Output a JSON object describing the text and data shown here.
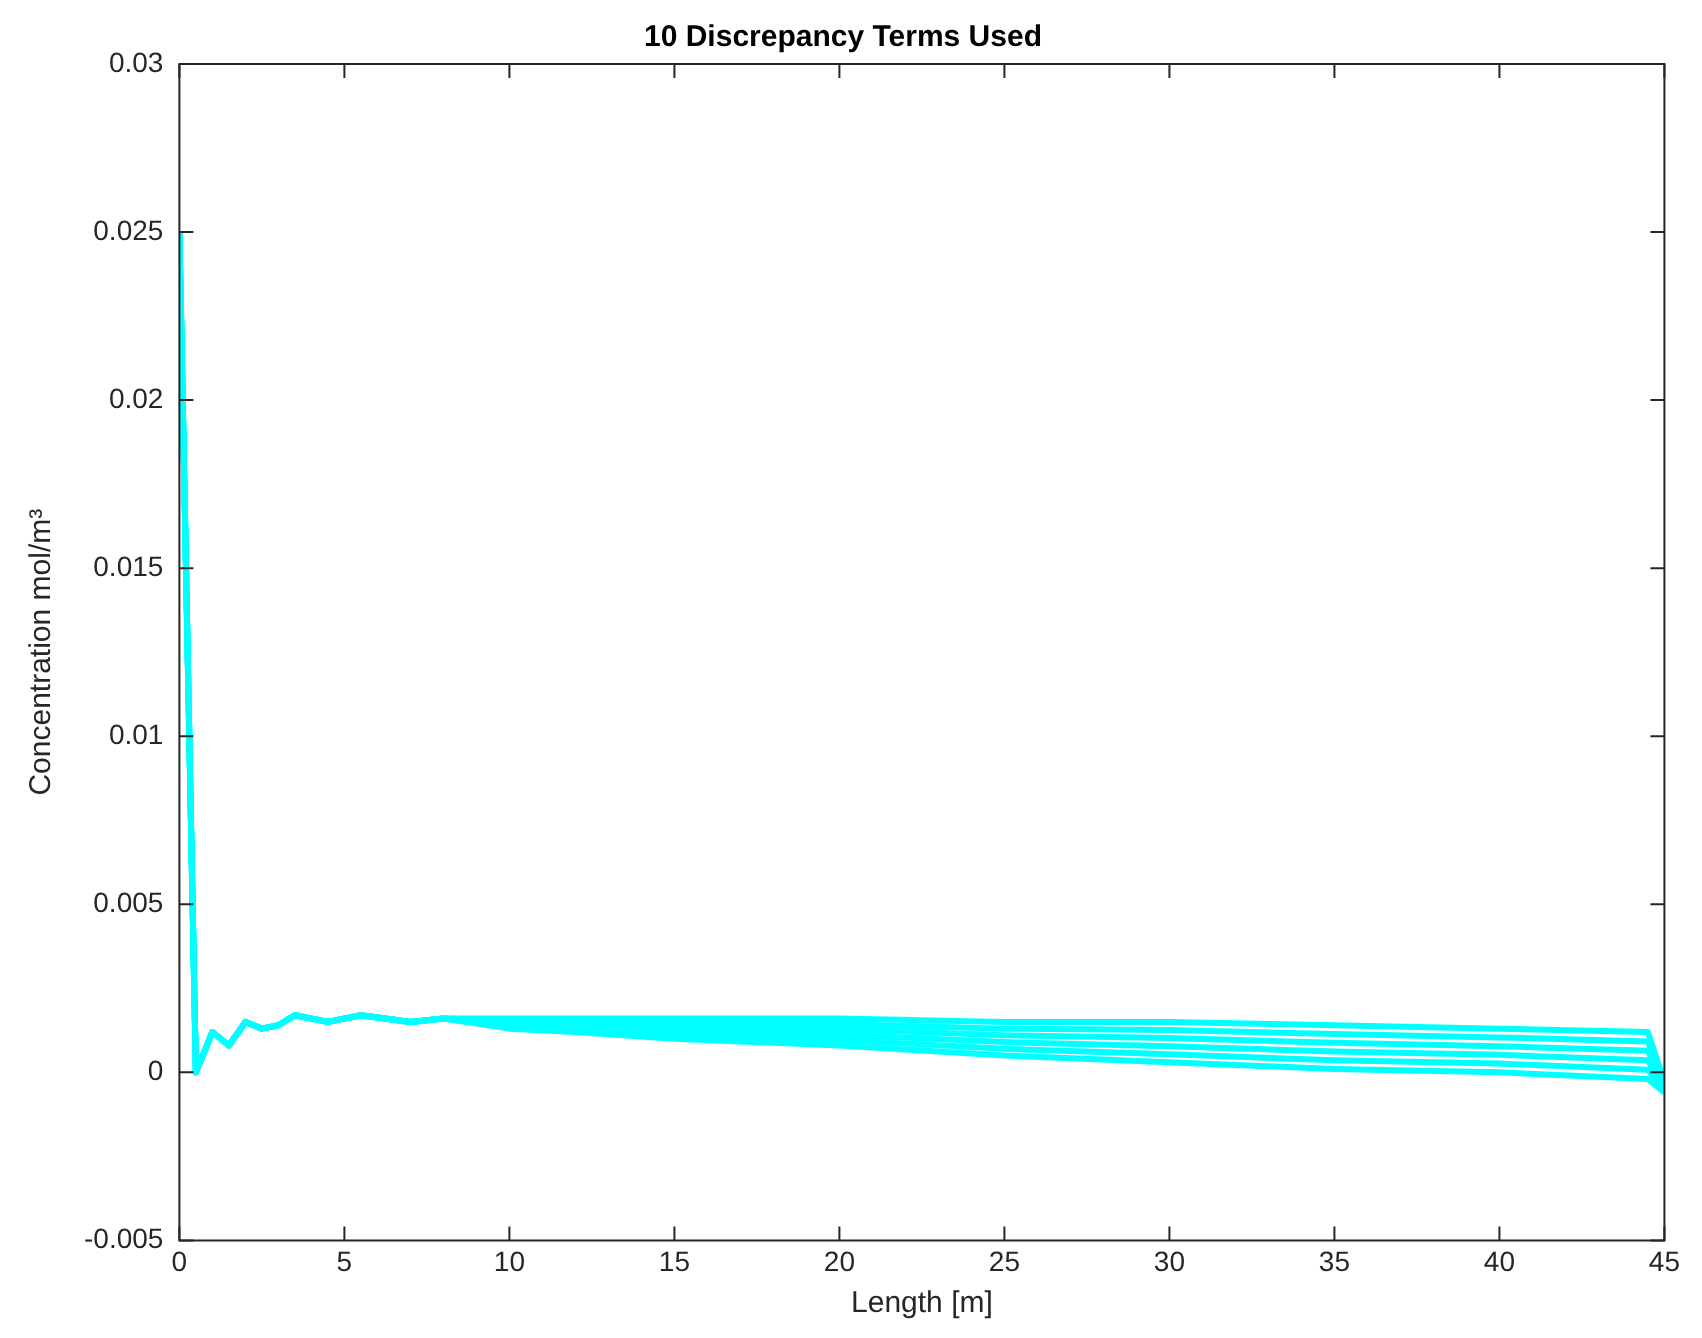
{
  "chart_data": {
    "type": "line",
    "title": "10 Discrepancy Terms Used",
    "xlabel": "Length [m]",
    "ylabel": "Concentration mol/m³",
    "x": [
      0,
      0.5,
      1,
      1.5,
      2,
      2.5,
      3,
      3.5,
      4.5,
      5.5,
      7,
      8,
      10,
      12,
      15,
      20,
      25,
      30,
      35,
      40,
      44.5,
      45
    ],
    "series": [
      {
        "color": "#00ffff",
        "values": [
          0.025,
          0,
          0.0012,
          0.0008,
          0.0015,
          0.0013,
          0.0014,
          0.0017,
          0.0015,
          0.0017,
          0.0015,
          0.0016,
          0.0016,
          0.0016,
          0.0016,
          0.0016,
          0.0015,
          0.0015,
          0.0014,
          0.0013,
          0.0012,
          -0.0003
        ]
      },
      {
        "color": "#00ffff",
        "values": [
          0.025,
          0,
          0.0012,
          0.0008,
          0.0015,
          0.0013,
          0.0014,
          0.0017,
          0.0015,
          0.0017,
          0.0015,
          0.0016,
          0.00154,
          0.00152,
          0.00148,
          0.00144,
          0.0013,
          0.00126,
          0.00114,
          0.00104,
          0.00092,
          -0.00036
        ]
      },
      {
        "color": "#00ffff",
        "values": [
          0.025,
          0,
          0.0012,
          0.0008,
          0.0015,
          0.0013,
          0.0014,
          0.0017,
          0.0015,
          0.0017,
          0.0015,
          0.0016,
          0.00148,
          0.00144,
          0.00136,
          0.00128,
          0.0011,
          0.00102,
          0.00088,
          0.00078,
          0.00064,
          -0.00042
        ]
      },
      {
        "color": "#00ffff",
        "values": [
          0.025,
          0,
          0.0012,
          0.0008,
          0.0015,
          0.0013,
          0.0014,
          0.0017,
          0.0015,
          0.0017,
          0.0015,
          0.0016,
          0.00142,
          0.00136,
          0.00124,
          0.00112,
          0.0009,
          0.00078,
          0.00062,
          0.00052,
          0.00036,
          -0.00048
        ]
      },
      {
        "color": "#00ffff",
        "values": [
          0.025,
          0,
          0.0012,
          0.0008,
          0.0015,
          0.0013,
          0.0014,
          0.0017,
          0.0015,
          0.0017,
          0.0015,
          0.0016,
          0.00136,
          0.00128,
          0.00112,
          0.00096,
          0.0007,
          0.00054,
          0.00036,
          0.00026,
          8e-05,
          -0.00054
        ]
      },
      {
        "color": "#00ffff",
        "values": [
          0.025,
          0,
          0.0012,
          0.0008,
          0.0015,
          0.0013,
          0.0014,
          0.0017,
          0.0015,
          0.0017,
          0.0015,
          0.0016,
          0.0013,
          0.0012,
          0.001,
          0.0008,
          0.0005,
          0.0003,
          0.0001,
          0,
          -0.0002,
          -0.0006
        ]
      }
    ],
    "xlim": [
      0,
      45
    ],
    "xticks": [
      0,
      5,
      10,
      15,
      20,
      25,
      30,
      35,
      40,
      45
    ],
    "ylim": [
      -0.005,
      0.03
    ],
    "yticks": [
      -0.005,
      0,
      0.005,
      0.01,
      0.015,
      0.02,
      0.025,
      0.03
    ],
    "grid": false,
    "legend": false,
    "marker": "none",
    "line_style": "solid"
  }
}
